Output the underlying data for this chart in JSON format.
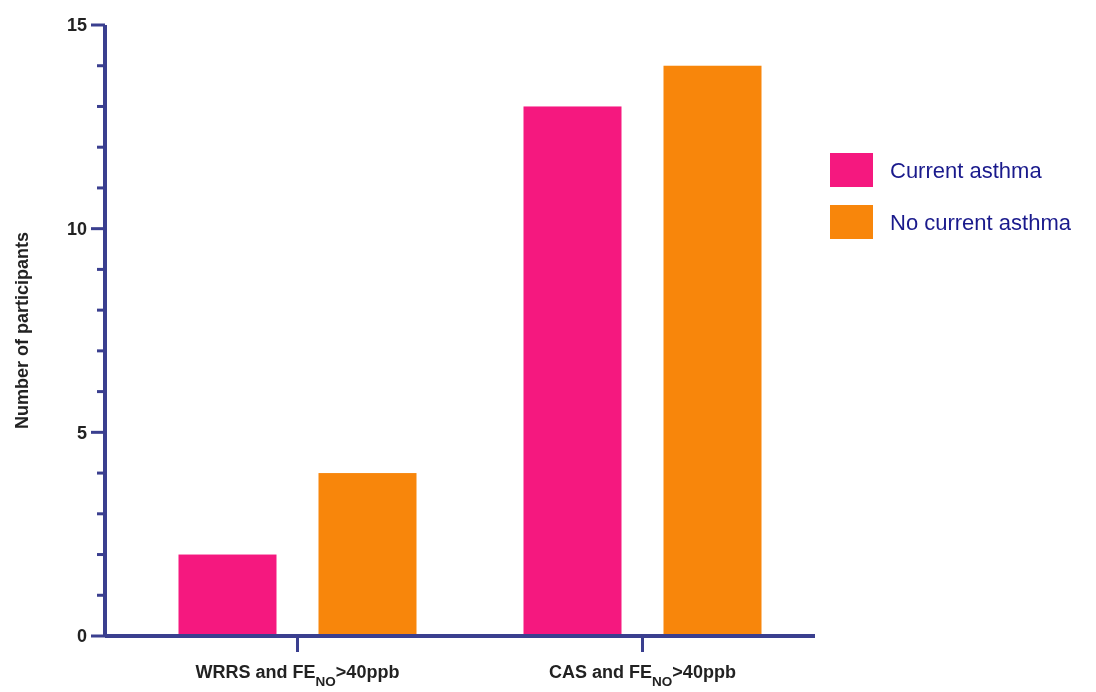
{
  "chart_data": {
    "type": "bar",
    "ylabel": "Number of participants",
    "categories": [
      "WRRS and FE$_{NO}$>40ppb",
      "CAS and FE$_{NO}$>40ppb"
    ],
    "series": [
      {
        "name": "Current asthma",
        "color": "#f5187f",
        "values": [
          2,
          13
        ]
      },
      {
        "name": "No current asthma",
        "color": "#f8860b",
        "values": [
          4,
          14
        ]
      }
    ],
    "ylim": [
      0,
      15
    ],
    "yticks": [
      0,
      {
        "value": 1,
        "label": null
      },
      {
        "value": 2,
        "label": null
      },
      {
        "value": 3,
        "label": null
      },
      {
        "value": 4,
        "label": null
      },
      5,
      {
        "value": 6,
        "label": null
      },
      {
        "value": 7,
        "label": null
      },
      {
        "value": 8,
        "label": null
      },
      {
        "value": 9,
        "label": null
      },
      10,
      {
        "value": 11,
        "label": null
      },
      {
        "value": 12,
        "label": null
      },
      {
        "value": 13,
        "label": null
      },
      {
        "value": 14,
        "label": null
      },
      15
    ],
    "legend": "right",
    "grid": false
  }
}
